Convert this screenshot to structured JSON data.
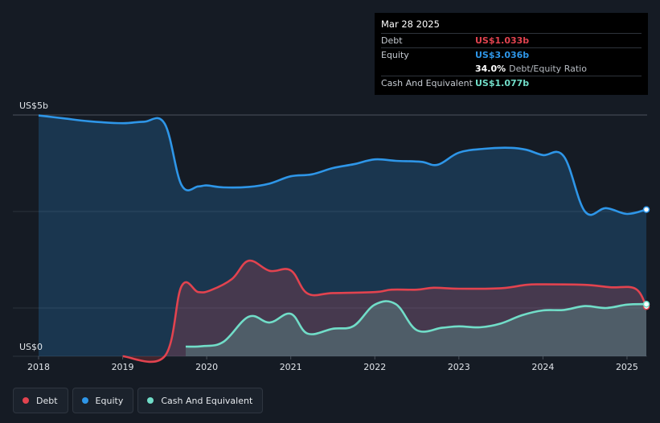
{
  "tooltip": {
    "date": "Mar 28 2025",
    "rows": [
      {
        "label": "Debt",
        "value": "US$1.033b",
        "color": "#e2434f"
      },
      {
        "label": "Equity",
        "value": "US$3.036b",
        "color": "#2e96e8"
      },
      {
        "label": "Cash And Equivalent",
        "value": "US$1.077b",
        "color": "#71ddc8"
      }
    ],
    "ratio_value": "34.0%",
    "ratio_label": "Debt/Equity Ratio"
  },
  "legend": [
    {
      "label": "Debt",
      "color": "#e2434f"
    },
    {
      "label": "Equity",
      "color": "#2e96e8"
    },
    {
      "label": "Cash And Equivalent",
      "color": "#71ddc8"
    }
  ],
  "chart_data": {
    "type": "area",
    "y_top_label": "US$5b",
    "y_bottom_label": "US$0",
    "ylim": [
      0,
      5
    ],
    "xlim": [
      2018.0,
      2025.23
    ],
    "x_ticks": [
      "2018",
      "2019",
      "2020",
      "2021",
      "2022",
      "2023",
      "2024",
      "2025"
    ],
    "grid": true,
    "legend_position": "bottom-left",
    "series": [
      {
        "name": "Debt",
        "color": "#e2434f",
        "points": [
          [
            2019.0,
            0
          ],
          [
            2019.5,
            0
          ],
          [
            2019.7,
            1.45
          ],
          [
            2019.9,
            1.33
          ],
          [
            2020.05,
            1.37
          ],
          [
            2020.3,
            1.6
          ],
          [
            2020.5,
            1.98
          ],
          [
            2020.75,
            1.77
          ],
          [
            2021.0,
            1.78
          ],
          [
            2021.2,
            1.3
          ],
          [
            2021.5,
            1.31
          ],
          [
            2022.0,
            1.33
          ],
          [
            2022.2,
            1.38
          ],
          [
            2022.5,
            1.38
          ],
          [
            2022.7,
            1.42
          ],
          [
            2023.0,
            1.4
          ],
          [
            2023.5,
            1.41
          ],
          [
            2023.8,
            1.48
          ],
          [
            2024.0,
            1.49
          ],
          [
            2024.5,
            1.48
          ],
          [
            2024.8,
            1.43
          ],
          [
            2025.1,
            1.4
          ],
          [
            2025.23,
            1.03
          ]
        ]
      },
      {
        "name": "Equity",
        "color": "#2e96e8",
        "points": [
          [
            2018.0,
            4.99
          ],
          [
            2018.3,
            4.93
          ],
          [
            2018.6,
            4.87
          ],
          [
            2019.0,
            4.83
          ],
          [
            2019.25,
            4.86
          ],
          [
            2019.5,
            4.82
          ],
          [
            2019.7,
            3.55
          ],
          [
            2019.9,
            3.52
          ],
          [
            2020.0,
            3.54
          ],
          [
            2020.2,
            3.5
          ],
          [
            2020.5,
            3.51
          ],
          [
            2020.75,
            3.58
          ],
          [
            2021.0,
            3.73
          ],
          [
            2021.25,
            3.77
          ],
          [
            2021.5,
            3.9
          ],
          [
            2021.75,
            3.98
          ],
          [
            2022.0,
            4.08
          ],
          [
            2022.25,
            4.05
          ],
          [
            2022.55,
            4.03
          ],
          [
            2022.75,
            3.97
          ],
          [
            2023.0,
            4.22
          ],
          [
            2023.3,
            4.3
          ],
          [
            2023.6,
            4.32
          ],
          [
            2023.8,
            4.28
          ],
          [
            2024.0,
            4.17
          ],
          [
            2024.25,
            4.14
          ],
          [
            2024.5,
            3.0
          ],
          [
            2024.75,
            3.07
          ],
          [
            2025.0,
            2.95
          ],
          [
            2025.23,
            3.04
          ]
        ]
      },
      {
        "name": "Cash And Equivalent",
        "color": "#71ddc8",
        "points": [
          [
            2019.75,
            0.2
          ],
          [
            2019.95,
            0.21
          ],
          [
            2020.2,
            0.3
          ],
          [
            2020.5,
            0.82
          ],
          [
            2020.75,
            0.7
          ],
          [
            2021.0,
            0.88
          ],
          [
            2021.2,
            0.47
          ],
          [
            2021.5,
            0.57
          ],
          [
            2021.75,
            0.63
          ],
          [
            2022.0,
            1.07
          ],
          [
            2022.25,
            1.08
          ],
          [
            2022.5,
            0.54
          ],
          [
            2022.8,
            0.59
          ],
          [
            2023.0,
            0.62
          ],
          [
            2023.25,
            0.6
          ],
          [
            2023.5,
            0.68
          ],
          [
            2023.75,
            0.85
          ],
          [
            2024.0,
            0.95
          ],
          [
            2024.25,
            0.96
          ],
          [
            2024.5,
            1.04
          ],
          [
            2024.75,
            1.0
          ],
          [
            2025.0,
            1.07
          ],
          [
            2025.23,
            1.08
          ]
        ]
      }
    ]
  }
}
